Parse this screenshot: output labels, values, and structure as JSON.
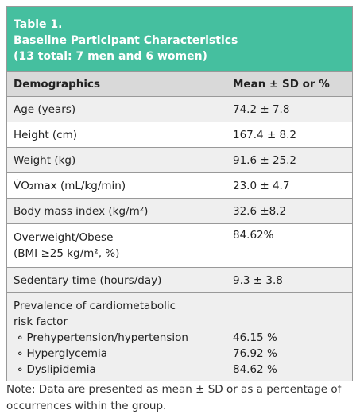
{
  "header": {
    "title_lines": [
      "Table 1.",
      "Baseline Participant Characteristics",
      "(13 total: 7 men and 6 women)"
    ]
  },
  "table": {
    "columns": [
      "Demographics",
      "Mean ± SD or %"
    ],
    "rows": [
      {
        "label_lines": [
          "Age (years)"
        ],
        "value": "74.2 ± 7.8"
      },
      {
        "label_lines": [
          "Height (cm)"
        ],
        "value": "167.4 ± 8.2"
      },
      {
        "label_lines": [
          "Weight (kg)"
        ],
        "value": "91.6 ± 25.2"
      },
      {
        "label_lines": [
          "V̇O₂max (mL/kg/min)"
        ],
        "value": "23.0 ± 4.7"
      },
      {
        "label_lines": [
          "Body mass index (kg/m²)"
        ],
        "value": "32.6 ±8.2"
      },
      {
        "label_lines": [
          "Overweight/Obese",
          "(BMI ≥25 kg/m², %)"
        ],
        "value": "84.62%"
      },
      {
        "label_lines": [
          "Sedentary time (hours/day)"
        ],
        "value": "9.3 ± 3.8"
      }
    ],
    "group": {
      "label_lines": [
        "Prevalence of cardiometabolic",
        "risk factor"
      ],
      "items": [
        {
          "label": "Prehypertension/hypertension",
          "value": "46.15 %"
        },
        {
          "label": "Hyperglycemia",
          "value": "76.92 %"
        },
        {
          "label": "Dyslipidemia",
          "value": "84.62 %"
        }
      ]
    }
  },
  "note": "Note: Data are presented as mean ± SD or as a percentage of occurrences within the group."
}
